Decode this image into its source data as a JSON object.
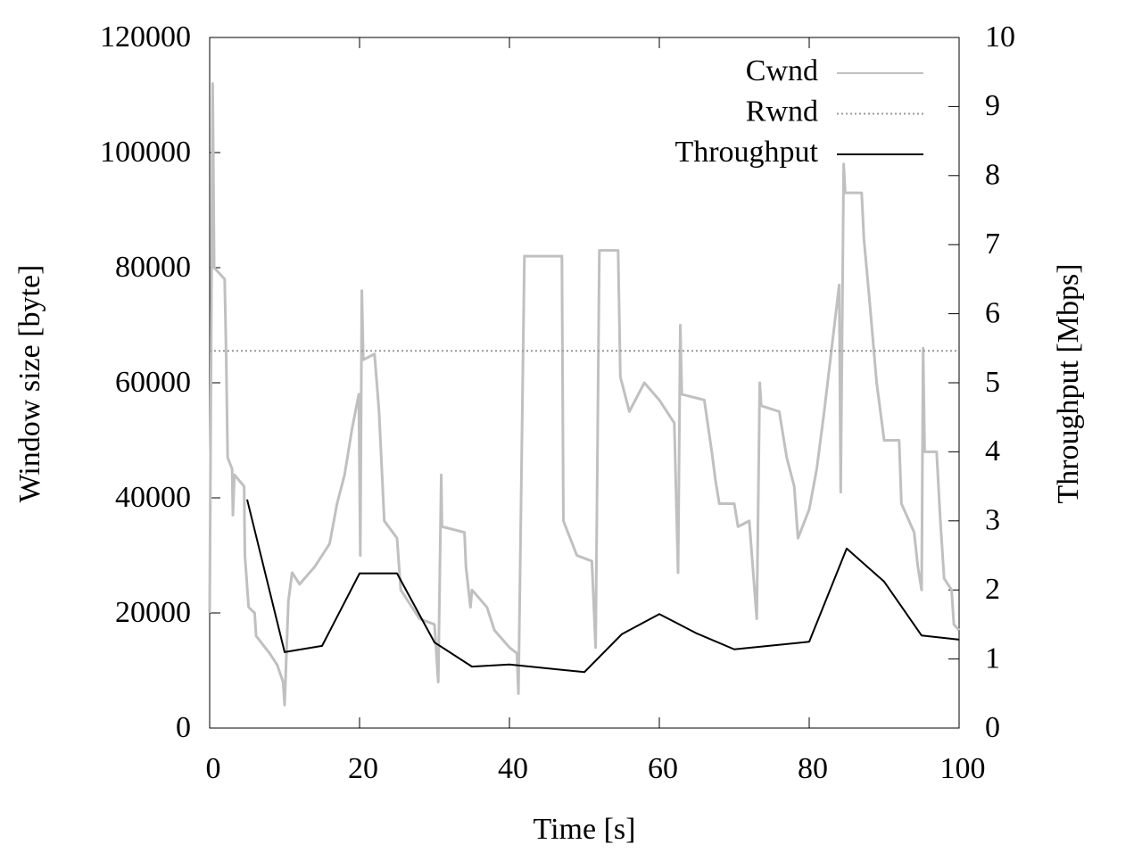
{
  "chart_data": {
    "type": "line",
    "xlabel": "Time [s]",
    "ylabel": "Window size [byte]",
    "y2label": "Throughput [Mbps]",
    "xlim": [
      0,
      100
    ],
    "xticks": [
      0,
      20,
      40,
      60,
      80,
      100
    ],
    "ylim": [
      0,
      120000
    ],
    "yticks": [
      0,
      20000,
      40000,
      60000,
      80000,
      100000,
      120000
    ],
    "y2lim": [
      0,
      10
    ],
    "y2ticks": [
      0,
      1,
      2,
      3,
      4,
      5,
      6,
      7,
      8,
      9,
      10
    ],
    "legend": "top-right",
    "series": [
      {
        "name": "Cwnd",
        "color": "#c0c0c0",
        "axis": "y",
        "x": [
          0,
          0.4,
          0.6,
          2,
          2.2,
          2.4,
          3,
          3.1,
          3.3,
          4.6,
          4.7,
          5.2,
          6,
          6.2,
          8,
          9,
          9.8,
          10,
          10.5,
          11,
          12,
          14,
          16,
          17,
          18,
          19,
          19.9,
          20.1,
          20.3,
          20.5,
          22,
          22.6,
          23.3,
          25,
          25.5,
          27,
          28,
          30,
          30.5,
          30.9,
          31,
          34,
          34.2,
          34.8,
          35,
          37,
          38,
          40,
          41,
          41.2,
          42,
          47,
          47.2,
          49,
          51,
          51.5,
          52,
          54.5,
          54.8,
          56,
          58,
          60,
          62,
          62.5,
          62.8,
          63,
          66,
          67,
          67.5,
          68,
          70,
          70.5,
          72,
          73,
          73.4,
          73.6,
          76,
          77,
          78,
          78.5,
          80,
          81,
          82,
          83,
          84,
          84.2,
          84.6,
          84.8,
          87,
          87.3,
          88,
          89,
          90,
          92,
          92.3,
          94,
          94.5,
          95,
          95.2,
          95.4,
          97,
          97.5,
          98,
          99,
          99.3,
          100
        ],
        "values": [
          20000,
          112000,
          80000,
          78000,
          65000,
          47000,
          45000,
          37000,
          44000,
          42000,
          30000,
          21000,
          20000,
          16000,
          13000,
          11000,
          8000,
          4000,
          22000,
          27000,
          25000,
          28000,
          32000,
          39000,
          44000,
          52000,
          58000,
          30000,
          76000,
          64000,
          65000,
          55000,
          36000,
          33000,
          24000,
          21000,
          19000,
          18000,
          8000,
          44000,
          35000,
          34000,
          28000,
          21000,
          24000,
          21000,
          17000,
          14000,
          13000,
          6000,
          82000,
          82000,
          36000,
          30000,
          29000,
          14000,
          83000,
          83000,
          61000,
          55000,
          60000,
          57000,
          53000,
          27000,
          70000,
          58000,
          57000,
          48000,
          43000,
          39000,
          39000,
          35000,
          36000,
          19000,
          60000,
          56000,
          55000,
          47000,
          42000,
          33000,
          38000,
          45000,
          55000,
          66000,
          77000,
          41000,
          98000,
          93000,
          93000,
          85000,
          75000,
          60000,
          50000,
          50000,
          39000,
          34000,
          28000,
          24000,
          66000,
          48000,
          48000,
          36000,
          26000,
          24000,
          18000,
          17000
        ]
      },
      {
        "name": "Rwnd",
        "color": "#999999",
        "dash": "2,3",
        "axis": "y",
        "x": [
          0,
          100
        ],
        "values": [
          65535,
          65535
        ]
      },
      {
        "name": "Throughput",
        "color": "#000000",
        "axis": "y2",
        "x": [
          5,
          10,
          15,
          20,
          25,
          30,
          35,
          40,
          50,
          55,
          60,
          65,
          70,
          80,
          85,
          90,
          95,
          100
        ],
        "values": [
          3.31,
          1.1,
          1.19,
          2.24,
          2.24,
          1.24,
          0.89,
          0.92,
          0.81,
          1.36,
          1.65,
          1.37,
          1.14,
          1.25,
          2.6,
          2.12,
          1.34,
          1.28
        ]
      }
    ]
  }
}
